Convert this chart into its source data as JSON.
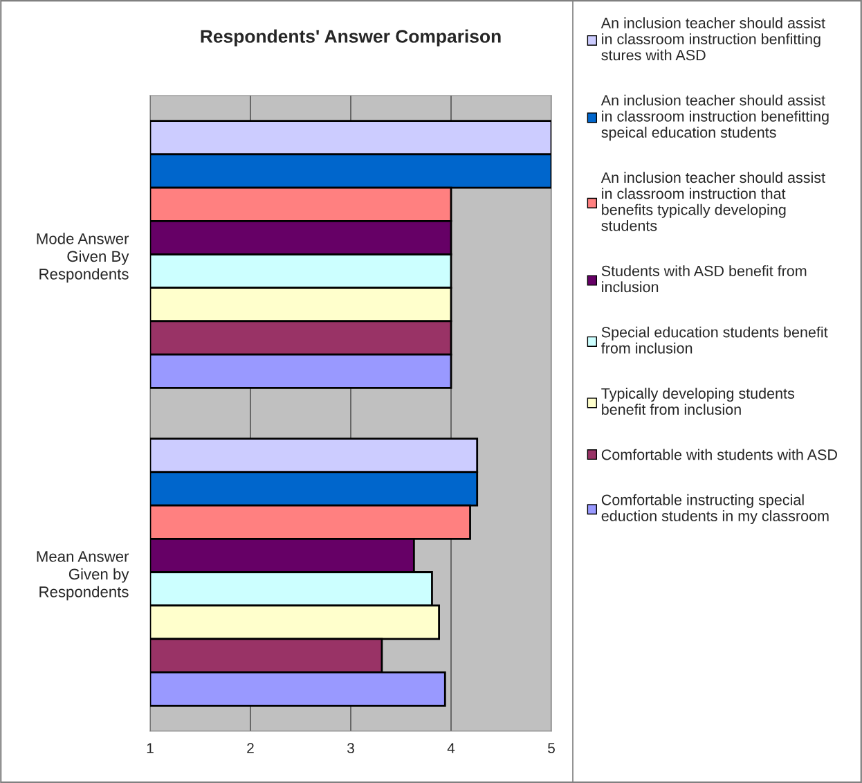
{
  "chart_data": {
    "type": "bar",
    "orientation": "horizontal",
    "title": "Respondents' Answer Comparison",
    "categories": [
      "Mode Answer\nGiven By\nRespondents",
      "Mean Answer\nGiven by\nRespondents"
    ],
    "series": [
      {
        "name": "An inclusion teacher should assist\nin classroom instruction benfitting\nstures with ASD",
        "color": "#ccccff",
        "values": [
          5,
          4.26
        ]
      },
      {
        "name": "An inclusion teacher should assist\nin classroom instruction benefitting\nspeical education students",
        "color": "#0066cc",
        "values": [
          5,
          4.26
        ]
      },
      {
        "name": "An inclusion teacher should assist\nin classroom instruction that\nbenefits typically developing\nstudents",
        "color": "#ff8080",
        "values": [
          4,
          4.19
        ]
      },
      {
        "name": "Students with ASD benefit from\ninclusion",
        "color": "#660066",
        "values": [
          4,
          3.63
        ]
      },
      {
        "name": "Special education students benefit\nfrom inclusion",
        "color": "#ccffff",
        "values": [
          4,
          3.81
        ]
      },
      {
        "name": "Typically developing students\nbenefit from inclusion",
        "color": "#ffffcc",
        "values": [
          4,
          3.88
        ]
      },
      {
        "name": "Comfortable with students with ASD",
        "color": "#993366",
        "values": [
          4,
          3.31
        ]
      },
      {
        "name": "Comfortable instructing special\neduction students in my classroom",
        "color": "#9999ff",
        "values": [
          4,
          3.94
        ]
      }
    ],
    "xlim": [
      1,
      5
    ],
    "xticks": [
      1,
      2,
      3,
      4,
      5
    ],
    "grid": "x",
    "legend": "right"
  }
}
